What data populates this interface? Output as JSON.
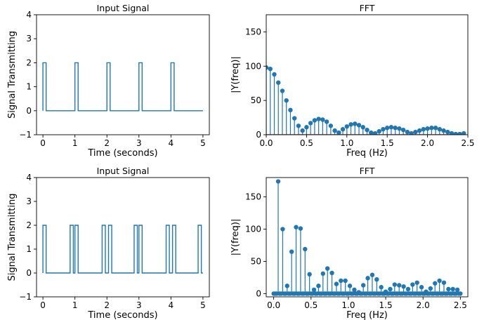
{
  "colors": {
    "series": "#1f77b4",
    "axes": "#000000",
    "background": "#ffffff"
  },
  "chart_data": [
    {
      "type": "line",
      "title": "Input Signal",
      "xlabel": "Time (seconds)",
      "ylabel": "Signal Transmitting",
      "xlim": [
        -0.2,
        5.2
      ],
      "ylim": [
        -1,
        4
      ],
      "xticks": [
        0,
        1,
        2,
        3,
        4,
        5
      ],
      "yticks": [
        -1,
        0,
        1,
        2,
        3,
        4
      ],
      "grid": false,
      "pulse_height": 2,
      "pulses": [
        [
          0.0,
          0.1
        ],
        [
          1.0,
          1.1
        ],
        [
          2.0,
          2.1
        ],
        [
          3.0,
          3.1
        ],
        [
          4.0,
          4.1
        ]
      ],
      "x_end": 5.0
    },
    {
      "type": "stem",
      "title": "FFT",
      "xlabel": "Freq (Hz)",
      "ylabel": "|Y(freq)|",
      "xlim": [
        0,
        2.5
      ],
      "ylim": [
        0,
        175
      ],
      "xticks": [
        0.0,
        0.5,
        1.0,
        1.5,
        2.0,
        2.5
      ],
      "yticks": [
        0,
        50,
        100,
        150
      ],
      "grid": false,
      "x_start": 0.0,
      "x_step": 0.05,
      "values": [
        98,
        96,
        88,
        76,
        64,
        50,
        36,
        24,
        13,
        6,
        11,
        17,
        21,
        23,
        22,
        19,
        13,
        6,
        3,
        8,
        12,
        15,
        16,
        14,
        11,
        7,
        3,
        2,
        5,
        8,
        10,
        11,
        10,
        9,
        7,
        4,
        2,
        4,
        6,
        8,
        9,
        10,
        10,
        8,
        6,
        4,
        2,
        1,
        1,
        2
      ]
    },
    {
      "type": "line",
      "title": "Input Signal",
      "xlabel": "Time (seconds)",
      "ylabel": "Signal Transmitting",
      "xlim": [
        -0.2,
        5.2
      ],
      "ylim": [
        -1,
        4
      ],
      "xticks": [
        0,
        1,
        2,
        3,
        4,
        5
      ],
      "yticks": [
        -1,
        0,
        1,
        2,
        3,
        4
      ],
      "grid": false,
      "pulse_height": 2,
      "pulses": [
        [
          0.0,
          0.1
        ],
        [
          0.85,
          0.95
        ],
        [
          1.0,
          1.1
        ],
        [
          1.85,
          1.95
        ],
        [
          2.05,
          2.15
        ],
        [
          2.85,
          2.95
        ],
        [
          3.0,
          3.1
        ],
        [
          3.85,
          3.95
        ],
        [
          4.05,
          4.15
        ],
        [
          4.85,
          4.95
        ]
      ],
      "x_end": 5.0
    },
    {
      "type": "stem",
      "title": "FFT",
      "xlabel": "Freq (Hz)",
      "ylabel": "|Y(freq)|",
      "xlim": [
        -0.1,
        2.6
      ],
      "ylim": [
        -5,
        180
      ],
      "xticks": [
        0.0,
        0.5,
        1.0,
        1.5,
        2.0,
        2.5
      ],
      "yticks": [
        0,
        50,
        100,
        150
      ],
      "grid": false,
      "x_start": 0.0,
      "x_step": 0.02,
      "values": [
        0,
        0,
        0,
        174,
        0,
        0,
        100,
        0,
        0,
        12,
        0,
        0,
        65,
        0,
        0,
        103,
        0,
        0,
        101,
        0,
        0,
        69,
        0,
        0,
        30,
        0,
        0,
        6,
        0,
        0,
        12,
        0,
        0,
        31,
        0,
        0,
        39,
        0,
        0,
        32,
        0,
        0,
        15,
        0,
        0,
        20,
        0,
        0,
        20,
        0,
        0,
        12,
        0,
        0,
        6,
        0,
        0,
        2,
        0,
        0,
        13,
        0,
        0,
        24,
        0,
        0,
        29,
        0,
        0,
        22,
        0,
        0,
        10,
        0,
        0,
        3,
        0,
        0,
        7,
        0,
        0,
        14,
        0,
        0,
        13,
        0,
        0,
        11,
        0,
        0,
        7,
        0,
        0,
        14,
        0,
        0,
        17,
        0,
        0,
        10,
        0,
        0,
        3,
        0,
        0,
        8,
        0,
        0,
        16,
        0,
        0,
        20,
        0,
        0,
        17,
        0,
        0,
        7,
        0,
        0,
        7,
        0,
        0,
        6,
        0,
        0
      ]
    }
  ]
}
